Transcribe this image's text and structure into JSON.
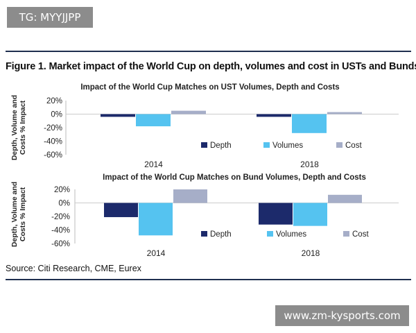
{
  "tag": "TG: MYYJJPP",
  "figure_title": "Figure 1. Market impact of the World Cup on depth, volumes and cost in USTs and Bunds",
  "source": "Source: Citi Research, CME, Eurex",
  "watermark": "www.zm-kysports.com",
  "colors": {
    "depth": "#1c2a6b",
    "volumes": "#55c3f0",
    "cost": "#a6aec8",
    "rule": "#1f2f4f"
  },
  "chart_data": [
    {
      "type": "bar",
      "title": "Impact of the World Cup Matches on UST Volumes, Depth and Costs",
      "ylabel_lines": [
        "Depth, Volume and",
        "Costs % Impact"
      ],
      "categories": [
        "2014",
        "2018"
      ],
      "yticks": [
        "20%",
        "0%",
        "-20%",
        "-40%",
        "-60%"
      ],
      "ylim": [
        -60,
        20
      ],
      "legend_position": "bottom-right inside plot",
      "grid": false,
      "series": [
        {
          "name": "Depth",
          "values": [
            -4,
            -4
          ]
        },
        {
          "name": "Volumes",
          "values": [
            -18,
            -28
          ]
        },
        {
          "name": "Cost",
          "values": [
            5,
            3
          ]
        }
      ]
    },
    {
      "type": "bar",
      "title": "Impact of the World Cup Matches on Bund Volumes, Depth and Costs",
      "ylabel_lines": [
        "Depth, Volume and",
        "Costs % Impact"
      ],
      "categories": [
        "2014",
        "2018"
      ],
      "yticks": [
        "20%",
        "0%",
        "-20%",
        "-40%",
        "-60%"
      ],
      "ylim": [
        -60,
        20
      ],
      "legend_position": "bottom-right inside plot",
      "grid": false,
      "series": [
        {
          "name": "Depth",
          "values": [
            -21,
            -32
          ]
        },
        {
          "name": "Volumes",
          "values": [
            -48,
            -34
          ]
        },
        {
          "name": "Cost",
          "values": [
            20,
            12
          ]
        }
      ]
    }
  ]
}
